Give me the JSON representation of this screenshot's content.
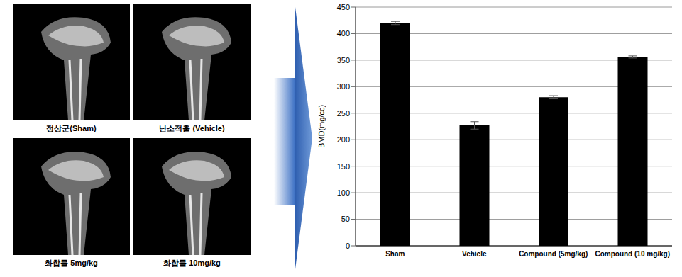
{
  "images": {
    "captions": [
      "정상군(Sham)",
      "난소적출 (Vehicle)",
      "화합물 5mg/kg",
      "화합물 10mg/kg"
    ]
  },
  "chart_data": {
    "type": "bar",
    "categories": [
      "Sham",
      "Vehicle",
      "Compound (5mg/kg)",
      "Compound (10 mg/kg)"
    ],
    "values": [
      420,
      227,
      280,
      356
    ],
    "errors": [
      3,
      7,
      3,
      2
    ],
    "color": "#000000",
    "y_label": "BMD(mg/cc)",
    "ylim": [
      0,
      450
    ],
    "yticks": [
      0,
      50,
      100,
      150,
      200,
      250,
      300,
      350,
      400,
      450
    ],
    "grid": true
  }
}
